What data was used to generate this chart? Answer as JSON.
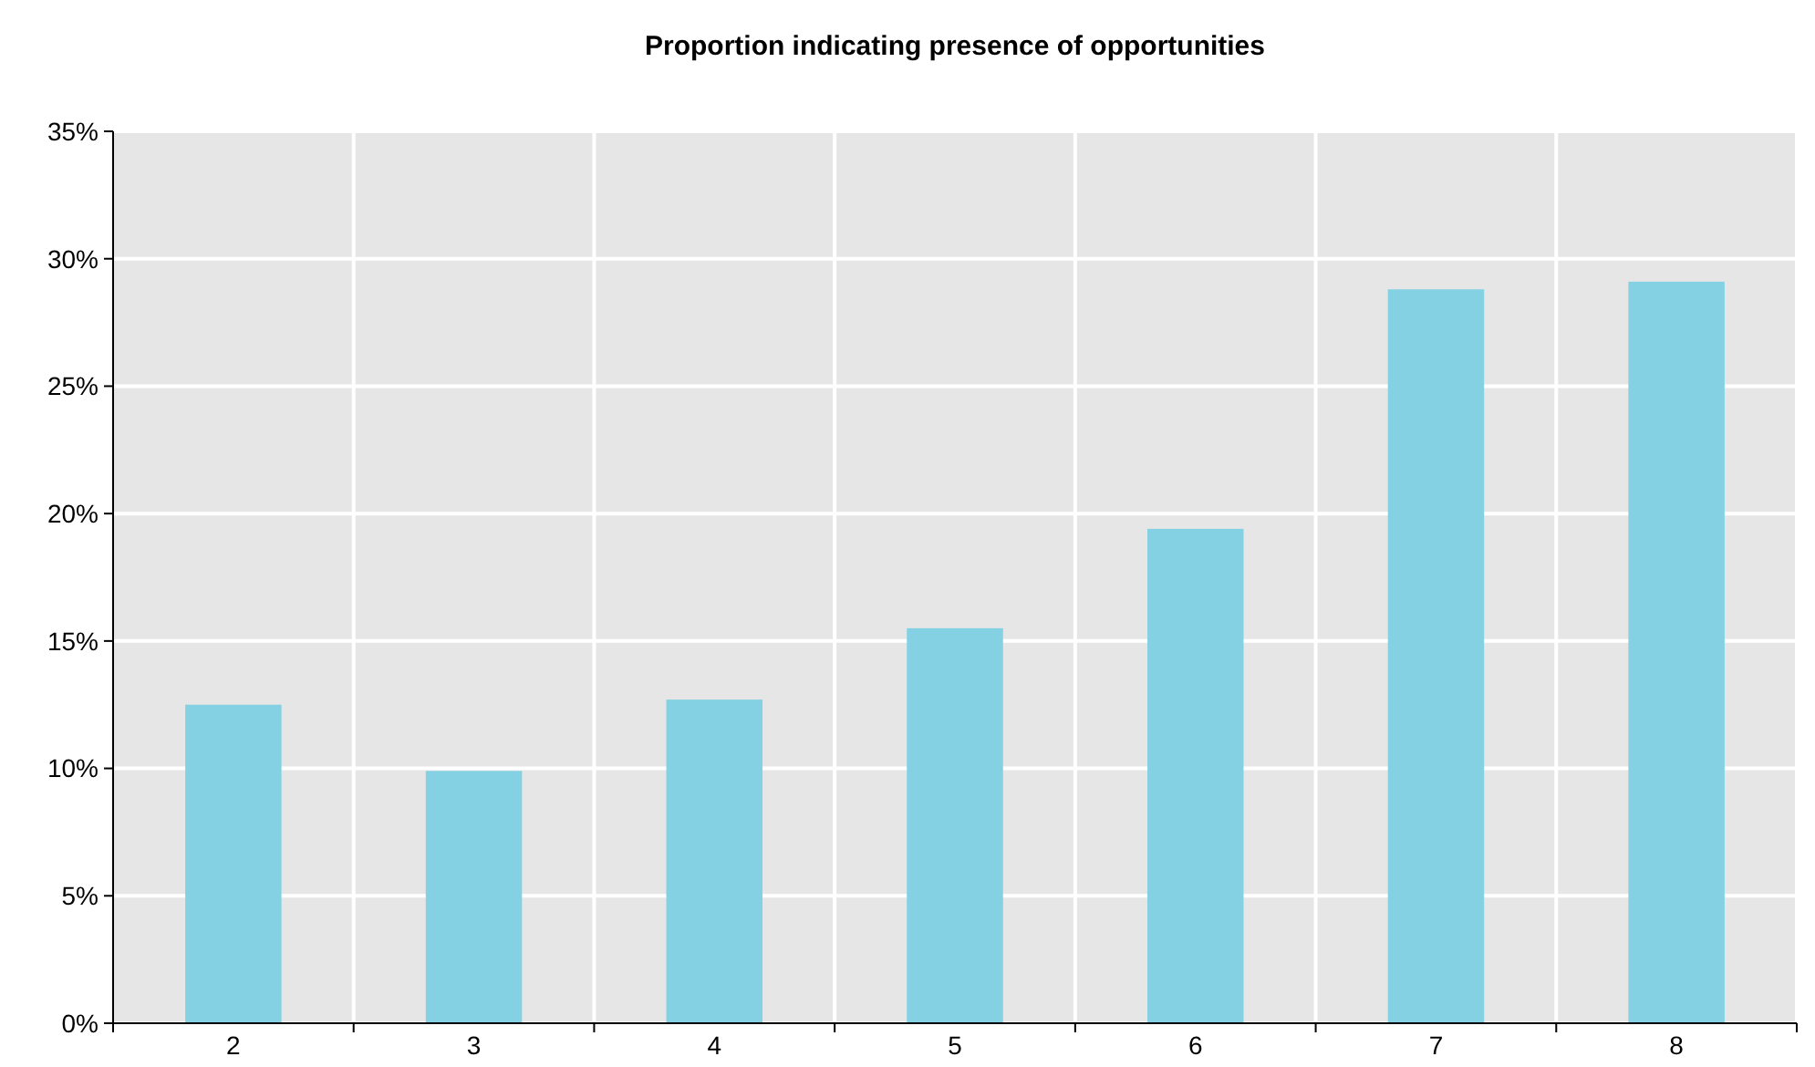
{
  "chart_data": {
    "type": "bar",
    "title": "Proportion indicating presence of opportunities",
    "categories": [
      "2",
      "3",
      "4",
      "5",
      "6",
      "7",
      "8"
    ],
    "values": [
      12.5,
      9.9,
      12.7,
      15.5,
      19.4,
      28.8,
      29.1
    ],
    "color": "#83d1e3",
    "ylim": [
      0,
      35
    ],
    "yticks": [
      {
        "value": 0,
        "label": "0%"
      },
      {
        "value": 5,
        "label": "5%"
      },
      {
        "value": 10,
        "label": "10%"
      },
      {
        "value": 15,
        "label": "15%"
      },
      {
        "value": 20,
        "label": "20%"
      },
      {
        "value": 25,
        "label": "25%"
      },
      {
        "value": 30,
        "label": "30%"
      },
      {
        "value": 35,
        "label": "35%"
      }
    ],
    "grid": true
  }
}
